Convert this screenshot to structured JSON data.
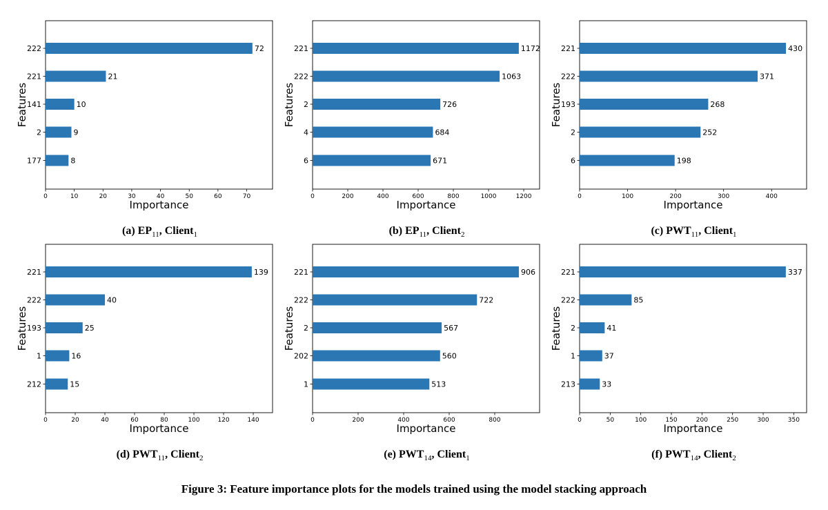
{
  "figure": {
    "caption": "Figure 3: Feature importance plots for the models trained using the model stacking approach"
  },
  "colors": {
    "bar": "#2a77b4",
    "axes": "#000000"
  },
  "chart_data": [
    {
      "type": "bar",
      "orientation": "horizontal",
      "subcaption": {
        "label": "(a) EP",
        "sub": "11",
        "client": "Client",
        "client_sub": "1"
      },
      "categories": [
        "222",
        "221",
        "141",
        "2",
        "177"
      ],
      "values": [
        72,
        21,
        10,
        9,
        8
      ],
      "xlabel": "Importance",
      "ylabel": "Features",
      "xlim": [
        0,
        79
      ],
      "xticks": [
        0,
        10,
        20,
        30,
        40,
        50,
        60,
        70
      ]
    },
    {
      "type": "bar",
      "orientation": "horizontal",
      "subcaption": {
        "label": "(b) EP",
        "sub": "11",
        "client": "Client",
        "client_sub": "2"
      },
      "categories": [
        "221",
        "222",
        "2",
        "4",
        "6"
      ],
      "values": [
        1172,
        1063,
        726,
        684,
        671
      ],
      "xlabel": "Importance",
      "ylabel": "Features",
      "xlim": [
        0,
        1290
      ],
      "xticks": [
        0,
        200,
        400,
        600,
        800,
        1000,
        1200
      ]
    },
    {
      "type": "bar",
      "orientation": "horizontal",
      "subcaption": {
        "label": "(c) PWT",
        "sub": "11",
        "client": "Client",
        "client_sub": "1"
      },
      "categories": [
        "221",
        "222",
        "193",
        "2",
        "6"
      ],
      "values": [
        430,
        371,
        268,
        252,
        198
      ],
      "xlabel": "Importance",
      "ylabel": "Features",
      "xlim": [
        0,
        473
      ],
      "xticks": [
        0,
        100,
        200,
        300,
        400
      ]
    },
    {
      "type": "bar",
      "orientation": "horizontal",
      "subcaption": {
        "label": "(d) PWT",
        "sub": "11",
        "client": "Client",
        "client_sub": "2"
      },
      "categories": [
        "221",
        "222",
        "193",
        "1",
        "212"
      ],
      "values": [
        139,
        40,
        25,
        16,
        15
      ],
      "xlabel": "Importance",
      "ylabel": "Features",
      "xlim": [
        0,
        153
      ],
      "xticks": [
        0,
        20,
        40,
        60,
        80,
        100,
        120,
        140
      ]
    },
    {
      "type": "bar",
      "orientation": "horizontal",
      "subcaption": {
        "label": "(e) PWT",
        "sub": "14",
        "client": "Client",
        "client_sub": "1"
      },
      "categories": [
        "221",
        "222",
        "2",
        "202",
        "1"
      ],
      "values": [
        906,
        722,
        567,
        560,
        513
      ],
      "xlabel": "Importance",
      "ylabel": "Features",
      "xlim": [
        0,
        997
      ],
      "xticks": [
        0,
        200,
        400,
        600,
        800
      ]
    },
    {
      "type": "bar",
      "orientation": "horizontal",
      "subcaption": {
        "label": "(f) PWT",
        "sub": "14",
        "client": "Client",
        "client_sub": "2"
      },
      "categories": [
        "221",
        "222",
        "2",
        "1",
        "213"
      ],
      "values": [
        337,
        85,
        41,
        37,
        33
      ],
      "xlabel": "Importance",
      "ylabel": "Features",
      "xlim": [
        0,
        371
      ],
      "xticks": [
        0,
        50,
        100,
        150,
        200,
        250,
        300,
        350
      ]
    }
  ]
}
